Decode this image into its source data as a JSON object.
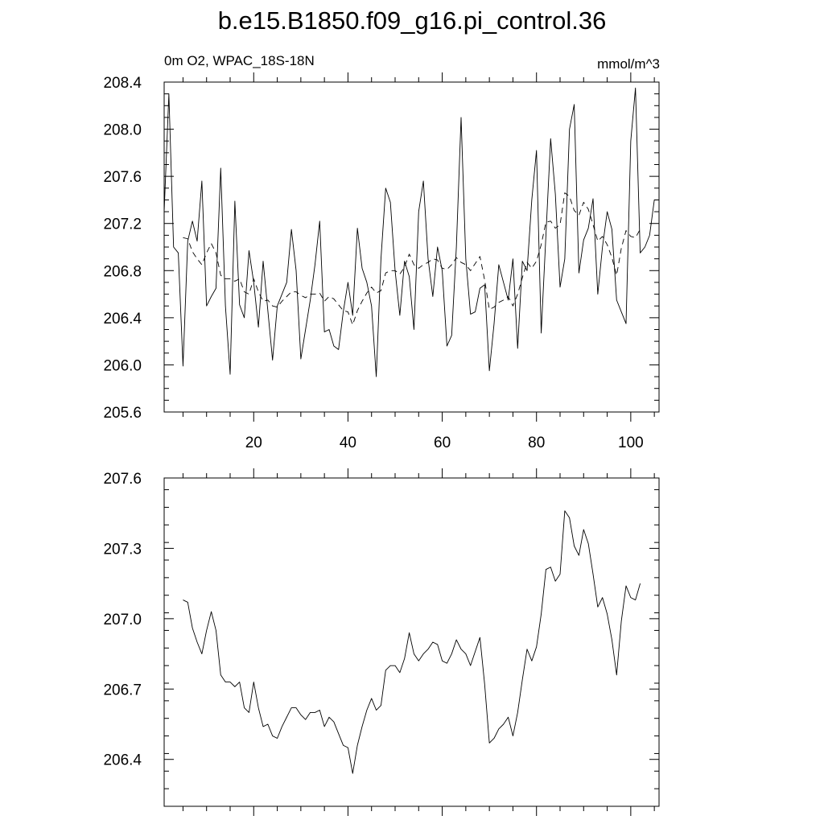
{
  "title": "b.e15.B1850.f09_g16.pi_control.36",
  "chart_data": [
    {
      "type": "line",
      "left_label": "0m O2, WPAC_18S-18N",
      "right_label": "mmol/m^3",
      "xlim": [
        1,
        106
      ],
      "ylim": [
        205.6,
        208.4
      ],
      "yticks": [
        205.6,
        206.0,
        206.4,
        206.8,
        207.2,
        207.6,
        208.0,
        208.4
      ],
      "ytick_labels": [
        "205.6",
        "206.0",
        "206.4",
        "206.8",
        "207.2",
        "207.6",
        "208.0",
        "208.4"
      ],
      "xticks": [
        20,
        40,
        60,
        80,
        100
      ],
      "xtick_labels": [
        "20",
        "40",
        "60",
        "80",
        "100"
      ],
      "grid": false,
      "series": [
        {
          "style": "solid",
          "x": [
            1,
            2,
            3,
            4,
            5,
            6,
            7,
            8,
            9,
            10,
            11,
            12,
            13,
            14,
            15,
            16,
            17,
            18,
            19,
            20,
            21,
            22,
            23,
            24,
            25,
            26,
            27,
            28,
            29,
            30,
            31,
            32,
            33,
            34,
            35,
            36,
            37,
            38,
            39,
            40,
            41,
            42,
            43,
            44,
            45,
            46,
            47,
            48,
            49,
            50,
            51,
            52,
            53,
            54,
            55,
            56,
            57,
            58,
            59,
            60,
            61,
            62,
            63,
            64,
            65,
            66,
            67,
            68,
            69,
            70,
            71,
            72,
            73,
            74,
            75,
            76,
            77,
            78,
            79,
            80,
            81,
            82,
            83,
            84,
            85,
            86,
            87,
            88,
            89,
            90,
            91,
            92,
            93,
            94,
            95,
            96,
            97,
            98,
            99,
            100,
            101,
            102,
            103,
            104,
            105,
            106
          ],
          "y": [
            207.3,
            208.3,
            207.0,
            206.95,
            205.99,
            207.05,
            207.22,
            207.05,
            207.56,
            206.5,
            206.58,
            206.65,
            207.67,
            206.5,
            205.92,
            207.39,
            206.51,
            206.4,
            206.97,
            206.7,
            206.32,
            206.88,
            206.46,
            206.04,
            206.5,
            206.6,
            206.7,
            207.15,
            206.8,
            206.05,
            206.3,
            206.55,
            206.85,
            207.22,
            206.28,
            206.3,
            206.16,
            206.13,
            206.45,
            206.7,
            206.42,
            207.16,
            206.82,
            206.7,
            206.5,
            205.9,
            206.9,
            207.5,
            207.38,
            206.8,
            206.42,
            206.88,
            206.75,
            206.3,
            207.3,
            207.56,
            206.9,
            206.58,
            207.0,
            206.8,
            206.16,
            206.25,
            207.0,
            208.1,
            206.9,
            206.43,
            206.45,
            206.65,
            206.68,
            205.95,
            206.35,
            206.85,
            206.7,
            206.55,
            206.9,
            206.14,
            206.88,
            206.8,
            207.4,
            207.82,
            206.27,
            207.1,
            207.92,
            207.45,
            206.66,
            206.9,
            208.0,
            208.21,
            206.78,
            207.06,
            207.16,
            207.41,
            206.6,
            207.0,
            207.3,
            207.15,
            206.55,
            206.45,
            206.35,
            207.9,
            208.35,
            206.95,
            207.0,
            207.1,
            207.4,
            207.4
          ]
        },
        {
          "style": "dashed",
          "x": [
            5,
            6,
            7,
            8,
            9,
            10,
            11,
            12,
            13,
            14,
            15,
            16,
            17,
            18,
            19,
            20,
            21,
            22,
            23,
            24,
            25,
            26,
            27,
            28,
            29,
            30,
            31,
            32,
            33,
            34,
            35,
            36,
            37,
            38,
            39,
            40,
            41,
            42,
            43,
            44,
            45,
            46,
            47,
            48,
            49,
            50,
            51,
            52,
            53,
            54,
            55,
            56,
            57,
            58,
            59,
            60,
            61,
            62,
            63,
            64,
            65,
            66,
            67,
            68,
            69,
            70,
            71,
            72,
            73,
            74,
            75,
            76,
            77,
            78,
            79,
            80,
            81,
            82,
            83,
            84,
            85,
            86,
            87,
            88,
            89,
            90,
            91,
            92,
            93,
            94,
            95,
            96,
            97,
            98,
            99,
            100,
            101,
            102
          ],
          "y": [
            207.08,
            207.07,
            206.96,
            206.9,
            206.85,
            206.95,
            207.03,
            206.95,
            206.76,
            206.73,
            206.73,
            206.71,
            206.73,
            206.62,
            206.6,
            206.73,
            206.62,
            206.54,
            206.55,
            206.5,
            206.49,
            206.54,
            206.58,
            206.62,
            206.62,
            206.59,
            206.57,
            206.6,
            206.6,
            206.61,
            206.54,
            206.58,
            206.56,
            206.51,
            206.46,
            206.45,
            206.34,
            206.46,
            206.54,
            206.61,
            206.66,
            206.61,
            206.63,
            206.78,
            206.8,
            206.8,
            206.77,
            206.83,
            206.94,
            206.85,
            206.82,
            206.85,
            206.87,
            206.9,
            206.89,
            206.82,
            206.81,
            206.85,
            206.91,
            206.87,
            206.85,
            206.8,
            206.86,
            206.92,
            206.72,
            206.47,
            206.49,
            206.53,
            206.55,
            206.58,
            206.5,
            206.6,
            206.74,
            206.87,
            206.82,
            206.88,
            207.02,
            207.21,
            207.22,
            207.16,
            207.19,
            207.46,
            207.43,
            207.31,
            207.27,
            207.38,
            207.32,
            207.19,
            207.05,
            207.09,
            207.02,
            206.91,
            206.76,
            206.99,
            207.14,
            207.09,
            207.08,
            207.15
          ]
        }
      ]
    },
    {
      "type": "line",
      "xlim": [
        1,
        106
      ],
      "ylim": [
        206.2,
        207.6
      ],
      "yticks": [
        206.4,
        206.7,
        207.0,
        207.3,
        207.6
      ],
      "ytick_labels": [
        "206.4",
        "206.7",
        "207.0",
        "207.3",
        "207.6"
      ],
      "xticks": [
        20,
        40,
        60,
        80,
        100
      ],
      "xtick_labels": [],
      "grid": false,
      "series": [
        {
          "style": "solid",
          "x": [
            5,
            6,
            7,
            8,
            9,
            10,
            11,
            12,
            13,
            14,
            15,
            16,
            17,
            18,
            19,
            20,
            21,
            22,
            23,
            24,
            25,
            26,
            27,
            28,
            29,
            30,
            31,
            32,
            33,
            34,
            35,
            36,
            37,
            38,
            39,
            40,
            41,
            42,
            43,
            44,
            45,
            46,
            47,
            48,
            49,
            50,
            51,
            52,
            53,
            54,
            55,
            56,
            57,
            58,
            59,
            60,
            61,
            62,
            63,
            64,
            65,
            66,
            67,
            68,
            69,
            70,
            71,
            72,
            73,
            74,
            75,
            76,
            77,
            78,
            79,
            80,
            81,
            82,
            83,
            84,
            85,
            86,
            87,
            88,
            89,
            90,
            91,
            92,
            93,
            94,
            95,
            96,
            97,
            98,
            99,
            100,
            101,
            102
          ],
          "y": [
            207.08,
            207.07,
            206.96,
            206.9,
            206.85,
            206.95,
            207.03,
            206.95,
            206.76,
            206.73,
            206.73,
            206.71,
            206.73,
            206.62,
            206.6,
            206.73,
            206.62,
            206.54,
            206.55,
            206.5,
            206.49,
            206.54,
            206.58,
            206.62,
            206.62,
            206.59,
            206.57,
            206.6,
            206.6,
            206.61,
            206.54,
            206.58,
            206.56,
            206.51,
            206.46,
            206.45,
            206.34,
            206.46,
            206.54,
            206.61,
            206.66,
            206.61,
            206.63,
            206.78,
            206.8,
            206.8,
            206.77,
            206.83,
            206.94,
            206.85,
            206.82,
            206.85,
            206.87,
            206.9,
            206.89,
            206.82,
            206.81,
            206.85,
            206.91,
            206.87,
            206.85,
            206.8,
            206.86,
            206.92,
            206.72,
            206.47,
            206.49,
            206.53,
            206.55,
            206.58,
            206.5,
            206.6,
            206.74,
            206.87,
            206.82,
            206.88,
            207.02,
            207.21,
            207.22,
            207.16,
            207.19,
            207.46,
            207.43,
            207.31,
            207.27,
            207.38,
            207.32,
            207.19,
            207.05,
            207.09,
            207.02,
            206.91,
            206.76,
            206.99,
            207.14,
            207.09,
            207.08,
            207.15
          ]
        }
      ]
    }
  ]
}
